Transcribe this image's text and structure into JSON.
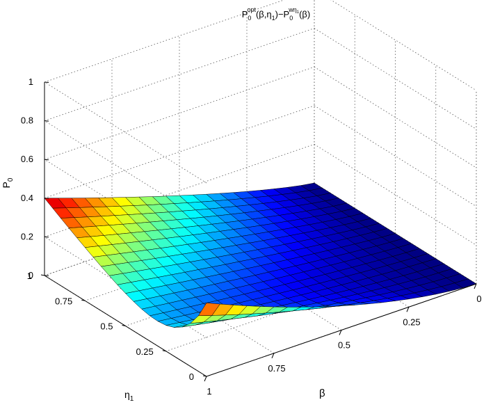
{
  "chart_data": {
    "type": "surface",
    "title": {
      "base1": "P",
      "sub1": "0",
      "sup1": "opt",
      "mid": "(β,η",
      "mid_sub": "1",
      "mid2": ")−P",
      "sub2": "0",
      "sup2": "wη",
      "sup2_sub": "1",
      "tail": "(β)"
    },
    "axes": {
      "x": {
        "label": "β",
        "ticks": [
          "0",
          "0.25",
          "0.5",
          "0.75",
          "1"
        ],
        "range": [
          0,
          1
        ]
      },
      "y": {
        "label_base": "η",
        "label_sub": "1",
        "ticks": [
          "0",
          "0.25",
          "0.5",
          "0.75",
          "1"
        ],
        "range": [
          0,
          1
        ]
      },
      "z": {
        "label_base": "P",
        "label_sub": "0",
        "ticks": [
          "0",
          "0.2",
          "0.4",
          "0.6",
          "0.8",
          "1"
        ],
        "range": [
          0,
          1
        ]
      }
    },
    "grid": true,
    "colormap": "jet",
    "color_range": [
      0,
      0.42
    ],
    "surface": {
      "description": "P0 difference over (beta, eta1) grid, 20x20",
      "beta_max_value_at_eta1_1": 0.42,
      "eta1_max_value_at_beta_1": 0.38
    }
  }
}
